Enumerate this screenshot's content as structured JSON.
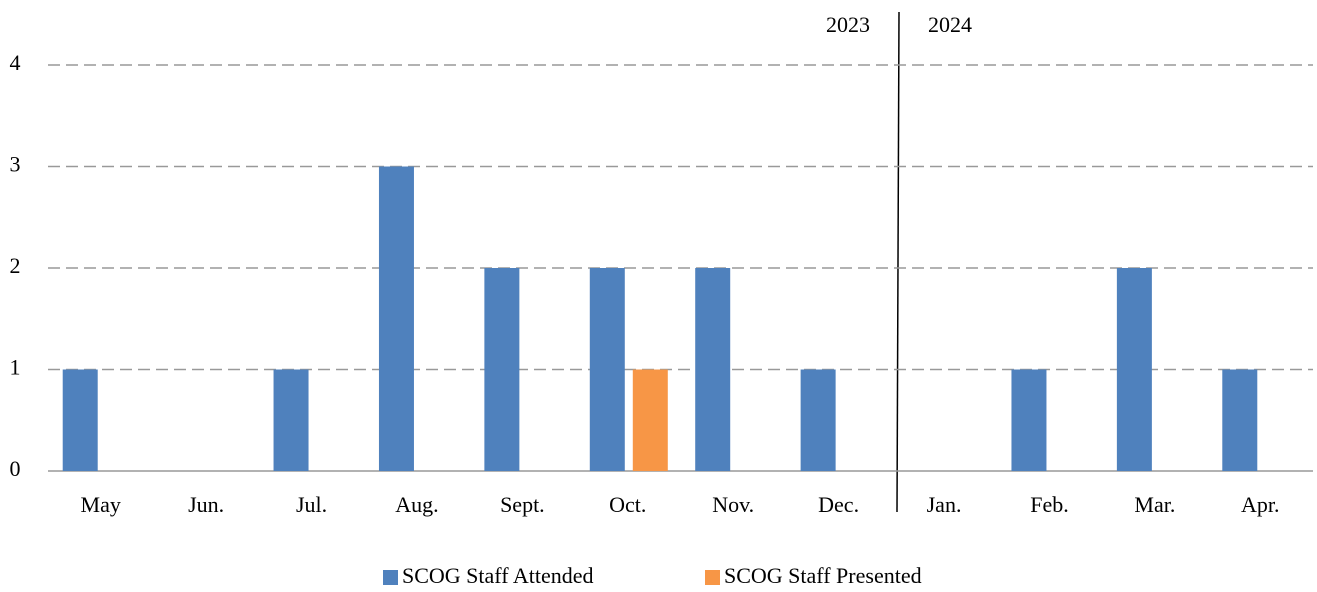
{
  "chart_data": {
    "type": "bar",
    "categories": [
      "May",
      "Jun.",
      "Jul.",
      "Aug.",
      "Sept.",
      "Oct.",
      "Nov.",
      "Dec.",
      "Jan.",
      "Feb.",
      "Mar.",
      "Apr."
    ],
    "series": [
      {
        "name": "SCOG Staff Attended",
        "color": "#4f81bd",
        "values": [
          1,
          0,
          1,
          3,
          2,
          2,
          2,
          1,
          0,
          1,
          2,
          1
        ]
      },
      {
        "name": "SCOG Staff Presented",
        "color": "#f79646",
        "values": [
          0,
          0,
          0,
          0,
          0,
          1,
          0,
          0,
          0,
          0,
          0,
          0
        ]
      }
    ],
    "ylim": [
      0,
      4
    ],
    "yticks": [
      0,
      1,
      2,
      3,
      4
    ],
    "grid": true,
    "legend": "bottom",
    "annotations": [
      "2023",
      "2024"
    ]
  }
}
